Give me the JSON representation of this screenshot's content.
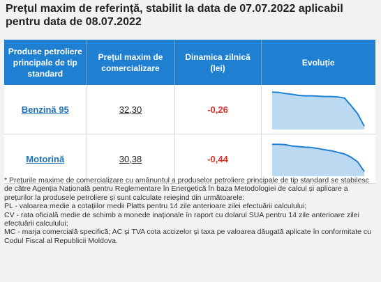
{
  "title": "Prețul maxim de referință, stabilit la data de 07.07.2022 aplicabil pentru data de 08.07.2022",
  "table": {
    "headers": [
      "Produse petroliere principale de tip standard",
      "Prețul maxim de comercializare",
      "Dinamica zilnică (lei)",
      "Evoluție"
    ],
    "rows": [
      {
        "product": "Benzină 95",
        "price": "32,30",
        "dynamic": "-0,26",
        "trend": [
          0.96,
          0.95,
          0.92,
          0.9,
          0.87,
          0.86,
          0.86,
          0.85,
          0.84,
          0.84,
          0.83,
          0.8,
          0.6,
          0.38,
          0.05
        ]
      },
      {
        "product": "Motorină",
        "price": "30,38",
        "dynamic": "-0,44",
        "trend": [
          0.95,
          0.95,
          0.94,
          0.9,
          0.88,
          0.86,
          0.85,
          0.82,
          0.78,
          0.75,
          0.7,
          0.65,
          0.55,
          0.4,
          0.1
        ]
      }
    ],
    "chart_colors": {
      "fill": "#bcd9f2",
      "line": "#1f7fd0"
    }
  },
  "notes": [
    "* Prețurile maxime de comercializare cu amănuntul a produselor petroliere principale de tip standard se stabilesc de către Agenția Națională pentru Reglementare în Energetică în baza Metodologiei de calcul și aplicare a prețurilor la produsele petroliere și sunt calculate reieșind din următoarele:",
    "PL - valoarea medie a cotațiilor medii Platts pentru 14 zile anterioare zilei efectuării calculului;",
    "CV - rata oficială medie de schimb a monede inaționale în raport cu dolarul SUA pentru 14 zile anterioare zilei efectuării calculului;",
    "MC - marja comercială specifică; AC și TVA cota accizelor și taxa pe valoarea dăugată aplicate în conformitate cu Codul Fiscal al Republicii Moldova."
  ]
}
